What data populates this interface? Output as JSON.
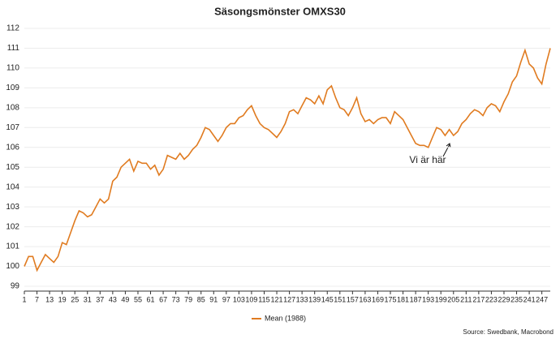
{
  "chart_data": {
    "type": "line",
    "title": "Säsongsmönster OMXS30",
    "annotation": "Vi är här",
    "source": "Source: Swedbank, Macrobond",
    "x": [
      1,
      3,
      5,
      7,
      9,
      11,
      13,
      15,
      17,
      19,
      21,
      23,
      25,
      27,
      29,
      31,
      33,
      35,
      37,
      39,
      41,
      43,
      45,
      47,
      49,
      51,
      53,
      55,
      57,
      59,
      61,
      63,
      65,
      67,
      69,
      71,
      73,
      75,
      77,
      79,
      81,
      83,
      85,
      87,
      89,
      91,
      93,
      95,
      97,
      99,
      101,
      103,
      105,
      107,
      109,
      111,
      113,
      115,
      117,
      119,
      121,
      123,
      125,
      127,
      129,
      131,
      133,
      135,
      137,
      139,
      141,
      143,
      145,
      147,
      149,
      151,
      153,
      155,
      157,
      159,
      161,
      163,
      165,
      167,
      169,
      171,
      173,
      175,
      177,
      179,
      181,
      183,
      185,
      187,
      189,
      191,
      193,
      195,
      197,
      199,
      201,
      203,
      205,
      207,
      209,
      211,
      213,
      215,
      217,
      219,
      221,
      223,
      225,
      227,
      229,
      231,
      233,
      235,
      237,
      239,
      241,
      243,
      245,
      247,
      249,
      251
    ],
    "series": [
      {
        "name": "Mean (1988)",
        "color": "#e07b20",
        "values": [
          100.0,
          100.5,
          100.5,
          99.8,
          100.2,
          100.6,
          100.4,
          100.2,
          100.5,
          101.2,
          101.1,
          101.7,
          102.3,
          102.8,
          102.7,
          102.5,
          102.6,
          103.0,
          103.4,
          103.2,
          103.4,
          104.3,
          104.5,
          105.0,
          105.2,
          105.4,
          104.8,
          105.3,
          105.2,
          105.2,
          104.9,
          105.1,
          104.6,
          104.9,
          105.6,
          105.5,
          105.4,
          105.7,
          105.4,
          105.6,
          105.9,
          106.1,
          106.5,
          107.0,
          106.9,
          106.6,
          106.3,
          106.6,
          107.0,
          107.2,
          107.2,
          107.5,
          107.6,
          107.9,
          108.1,
          107.6,
          107.2,
          107.0,
          106.9,
          106.7,
          106.5,
          106.8,
          107.2,
          107.8,
          107.9,
          107.7,
          108.1,
          108.5,
          108.4,
          108.2,
          108.6,
          108.2,
          108.9,
          109.1,
          108.5,
          108.0,
          107.9,
          107.6,
          108.0,
          108.5,
          107.7,
          107.3,
          107.4,
          107.2,
          107.4,
          107.5,
          107.5,
          107.2,
          107.8,
          107.6,
          107.4,
          107.0,
          106.6,
          106.2,
          106.1,
          106.1,
          106.0,
          106.5,
          107.0,
          106.9,
          106.6,
          106.9,
          106.6,
          106.8,
          107.2,
          107.4,
          107.7,
          107.9,
          107.8,
          107.6,
          108.0,
          108.2,
          108.1,
          107.8,
          108.3,
          108.7,
          109.3,
          109.6,
          110.3,
          110.9,
          110.2,
          110.0,
          109.5,
          109.2,
          110.2,
          111.0
        ]
      }
    ],
    "xlim": [
      1,
      251
    ],
    "xticks": [
      1,
      7,
      13,
      19,
      25,
      31,
      37,
      43,
      49,
      55,
      61,
      67,
      73,
      79,
      85,
      91,
      97,
      103,
      109,
      115,
      121,
      127,
      133,
      139,
      145,
      151,
      157,
      163,
      169,
      175,
      181,
      187,
      193,
      199,
      205,
      211,
      217,
      223,
      229,
      235,
      241,
      247
    ],
    "ylim": [
      99,
      112
    ],
    "yticks": [
      99,
      100,
      101,
      102,
      103,
      104,
      105,
      106,
      107,
      108,
      109,
      110,
      111,
      112
    ],
    "grid": true
  }
}
